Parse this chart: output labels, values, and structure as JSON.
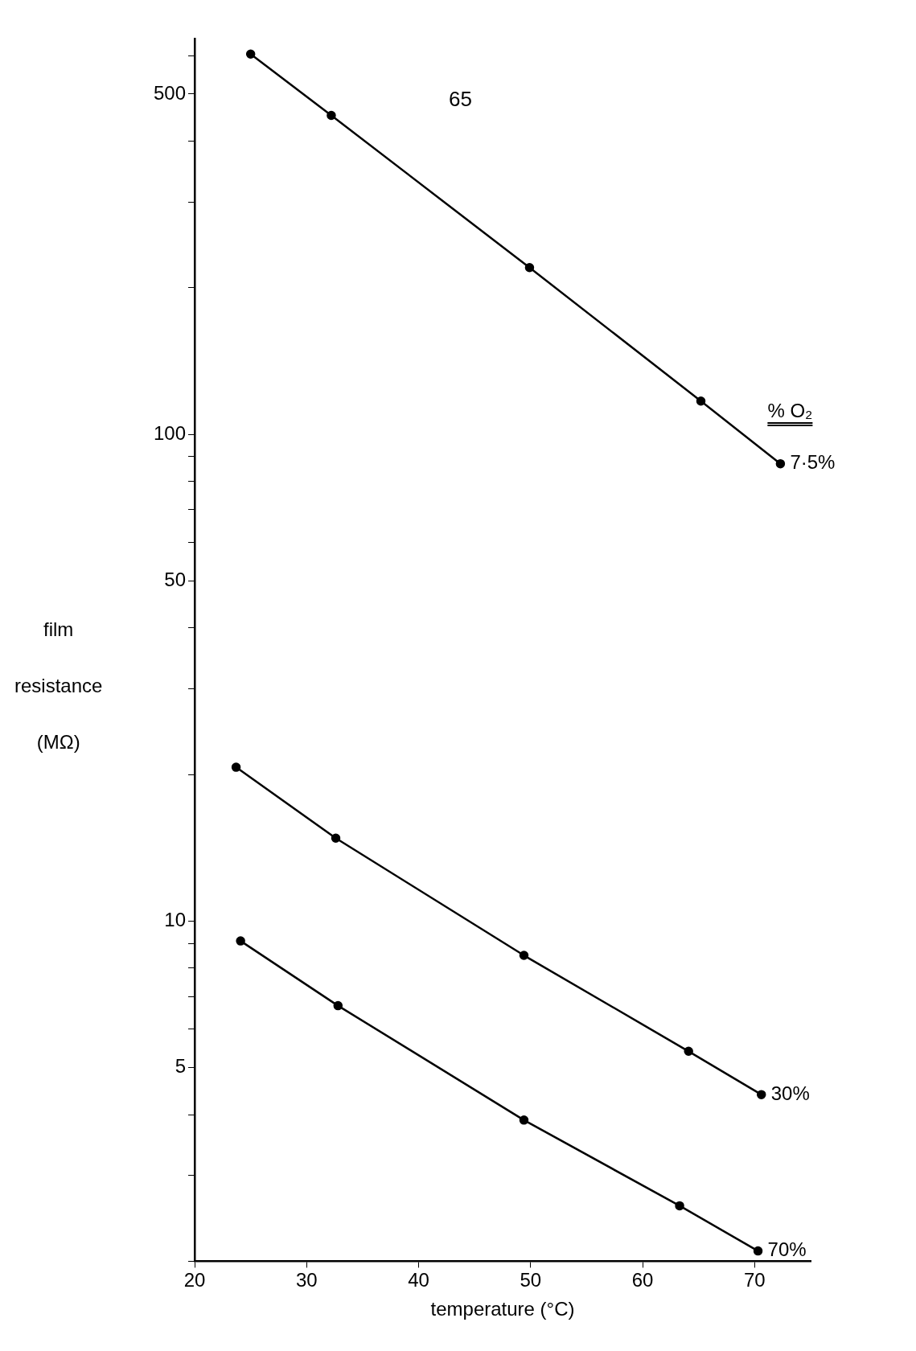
{
  "chart_data": {
    "type": "line",
    "xlabel": "temperature (°C)",
    "ylabel": "film resistance (MΩ)",
    "legend_title": "% O₂",
    "annotations": [
      "65"
    ],
    "xlim": [
      20,
      75
    ],
    "xticks": [
      20,
      30,
      40,
      50,
      60,
      70
    ],
    "ylim": [
      2,
      650
    ],
    "log": "y",
    "yticks": [
      {
        "value": 2,
        "label": null
      },
      {
        "value": 3,
        "label": null
      },
      {
        "value": 4,
        "label": null
      },
      5,
      {
        "value": 6,
        "label": null
      },
      {
        "value": 7,
        "label": null
      },
      {
        "value": 8,
        "label": null
      },
      {
        "value": 9,
        "label": null
      },
      10,
      {
        "value": 20,
        "label": null
      },
      {
        "value": 30,
        "label": null
      },
      {
        "value": 40,
        "label": null
      },
      50,
      {
        "value": 60,
        "label": null
      },
      {
        "value": 70,
        "label": null
      },
      {
        "value": 80,
        "label": null
      },
      {
        "value": 90,
        "label": null
      },
      100,
      {
        "value": 200,
        "label": null
      },
      {
        "value": 300,
        "label": null
      },
      {
        "value": 400,
        "label": null
      },
      500,
      {
        "value": 600,
        "label": null
      }
    ],
    "grid": false,
    "legend": "right",
    "marker": "circle",
    "line_style": "solid",
    "series": [
      {
        "name": "7·5%",
        "color": "#000000",
        "x": [
          25,
          32.2,
          49.9,
          65.2,
          72.3
        ],
        "values": [
          604,
          452,
          220,
          117,
          87
        ]
      },
      {
        "name": "30%",
        "color": "#000000",
        "x": [
          23.7,
          32.6,
          49.4,
          64.1,
          70.6
        ],
        "values": [
          20.7,
          14.8,
          8.5,
          5.4,
          4.4
        ]
      },
      {
        "name": "70%",
        "color": "#000000",
        "x": [
          24.1,
          32.8,
          49.4,
          63.3,
          70.3
        ],
        "values": [
          9.1,
          6.7,
          3.9,
          2.6,
          2.1
        ]
      }
    ]
  }
}
